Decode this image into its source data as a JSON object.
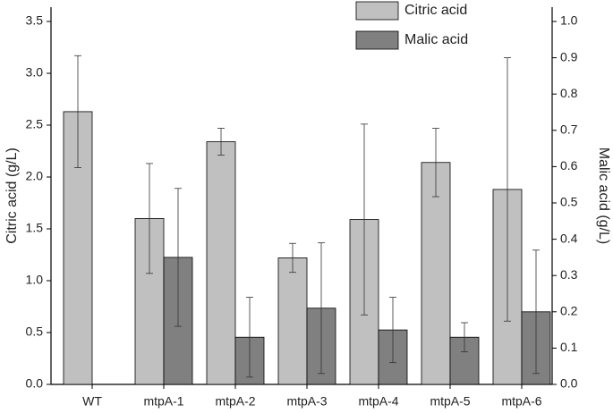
{
  "chart_data": {
    "type": "bar",
    "categories": [
      "WT",
      "mtpA-1",
      "mtpA-2",
      "mtpA-3",
      "mtpA-4",
      "mtpA-5",
      "mtpA-6"
    ],
    "series": [
      {
        "name": "Citric acid",
        "color": "#c0c0c0",
        "values": [
          2.63,
          1.6,
          2.34,
          1.22,
          1.59,
          2.14,
          1.88
        ],
        "errors": [
          0.54,
          0.53,
          0.13,
          0.14,
          0.92,
          0.33,
          1.27
        ]
      },
      {
        "name": "Malic acid",
        "color": "#808080",
        "axis": "y2",
        "values": [
          0,
          0.35,
          0.13,
          0.21,
          0.15,
          0.13,
          0.2
        ],
        "errors": [
          0,
          0.19,
          0.11,
          0.18,
          0.09,
          0.04,
          0.17
        ]
      }
    ],
    "ylabel": "Citric acid (g/L)",
    "y2label": "Malic acid (g/L)",
    "ylim": [
      0,
      3.5
    ],
    "yticks": [
      {
        "value": 0,
        "label": "0.0"
      },
      {
        "value": 0.5,
        "label": "0.5"
      },
      {
        "value": 1,
        "label": "1.0"
      },
      {
        "value": 1.5,
        "label": "1.5"
      },
      {
        "value": 2,
        "label": "2.0"
      },
      {
        "value": 2.5,
        "label": "2.5"
      },
      {
        "value": 3,
        "label": "3.0"
      },
      {
        "value": 3.5,
        "label": "3.5"
      }
    ],
    "y2lim": [
      0,
      1
    ],
    "y2ticks": [
      {
        "value": 0,
        "label": "0.0"
      },
      0.1,
      0.2,
      0.3,
      0.4,
      0.5,
      0.6,
      0.7,
      0.8,
      0.9,
      {
        "value": 1,
        "label": "1.0"
      }
    ],
    "legend": "top-right"
  }
}
